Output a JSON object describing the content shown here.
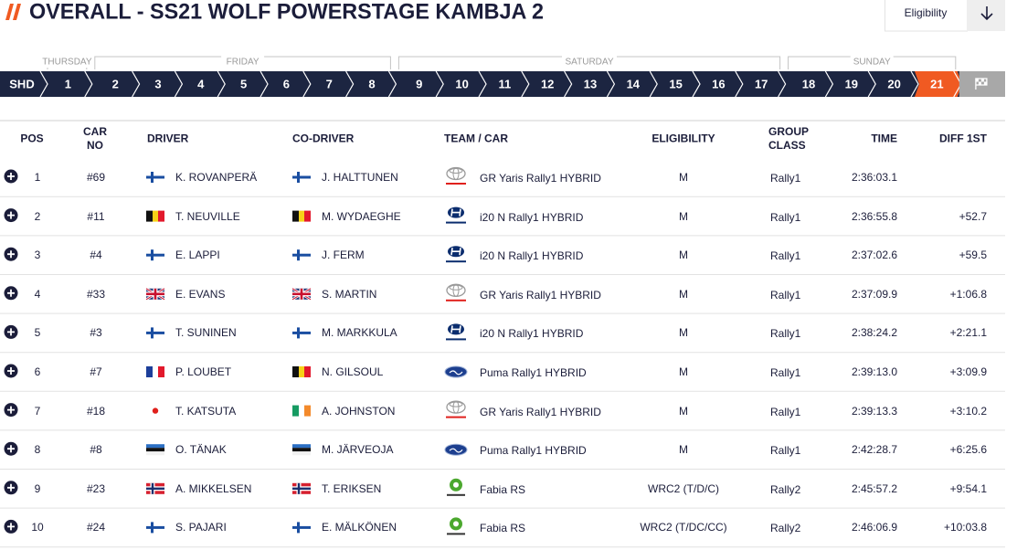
{
  "header": {
    "title": "OVERALL - SS21 WOLF POWERSTAGE KAMBJA 2",
    "filter": "Eligibility"
  },
  "stage_nav": {
    "start": "SHD",
    "active_stage": 21,
    "days": [
      {
        "name": "THURSDAY",
        "stages": [
          1
        ]
      },
      {
        "name": "FRIDAY",
        "stages": [
          2,
          3,
          4,
          5,
          6,
          7,
          8
        ]
      },
      {
        "name": "SATURDAY",
        "stages": [
          9,
          10,
          11,
          12,
          13,
          14,
          15,
          16,
          17
        ]
      },
      {
        "name": "SUNDAY",
        "stages": [
          18,
          19,
          20,
          21
        ]
      }
    ]
  },
  "table": {
    "columns": [
      "POS",
      "CAR NO",
      "DRIVER",
      "CO-DRIVER",
      "TEAM / CAR",
      "ELIGIBILITY",
      "GROUP CLASS",
      "TIME",
      "DIFF 1ST"
    ],
    "rows": [
      [
        1,
        "#69",
        "K. ROVANPERÄ",
        "J. HALTTUNEN",
        "GR Yaris Rally1 HYBRID",
        "M",
        "Rally1",
        "2:36:03.1",
        null
      ],
      [
        2,
        "#11",
        "T. NEUVILLE",
        "M. WYDAEGHE",
        "i20 N Rally1 HYBRID",
        "M",
        "Rally1",
        "2:36:55.8",
        "+52.7"
      ],
      [
        3,
        "#4",
        "E. LAPPI",
        "J. FERM",
        "i20 N Rally1 HYBRID",
        "M",
        "Rally1",
        "2:37:02.6",
        "+59.5"
      ],
      [
        4,
        "#33",
        "E. EVANS",
        "S. MARTIN",
        "GR Yaris Rally1 HYBRID",
        "M",
        "Rally1",
        "2:37:09.9",
        "+1:06.8"
      ],
      [
        5,
        "#3",
        "T. SUNINEN",
        "M. MARKKULA",
        "i20 N Rally1 HYBRID",
        "M",
        "Rally1",
        "2:38:24.2",
        "+2:21.1"
      ],
      [
        6,
        "#7",
        "P. LOUBET",
        "N. GILSOUL",
        "Puma Rally1 HYBRID",
        "M",
        "Rally1",
        "2:39:13.0",
        "+3:09.9"
      ],
      [
        7,
        "#18",
        "T. KATSUTA",
        "A. JOHNSTON",
        "GR Yaris Rally1 HYBRID",
        "M",
        "Rally1",
        "2:39:13.3",
        "+3:10.2"
      ],
      [
        8,
        "#8",
        "O. TÄNAK",
        "M. JÄRVEOJA",
        "Puma Rally1 HYBRID",
        "M",
        "Rally1",
        "2:42:28.7",
        "+6:25.6"
      ],
      [
        9,
        "#23",
        "A. MIKKELSEN",
        "T. ERIKSEN",
        "Fabia RS",
        "WRC2 (T/D/C)",
        "Rally2",
        "2:45:57.2",
        "+9:54.1"
      ],
      [
        10,
        "#24",
        "S. PAJARI",
        "E. MÄLKÖNEN",
        "Fabia RS",
        "WRC2 (T/DC/CC)",
        "Rally2",
        "2:46:06.9",
        "+10:03.8"
      ]
    ]
  }
}
